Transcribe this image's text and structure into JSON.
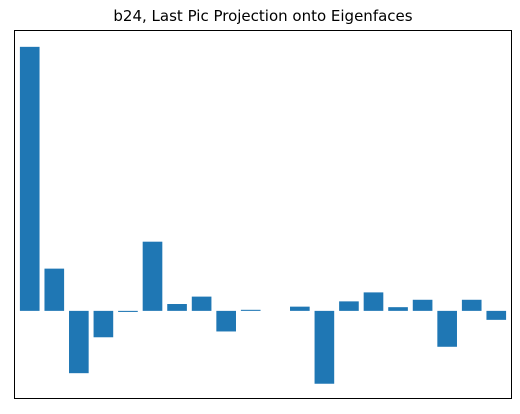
{
  "chart_data": {
    "type": "bar",
    "title": "b24, Last Pic Projection onto Eigenfaces",
    "xlabel": "",
    "ylabel": "",
    "x": [
      1,
      2,
      3,
      4,
      5,
      6,
      7,
      8,
      9,
      10,
      11,
      12,
      13,
      14,
      15,
      16,
      17,
      18,
      19,
      20
    ],
    "values": [
      100,
      16,
      -23.6,
      -10,
      -0.4,
      26.2,
      2.6,
      5.4,
      -7.8,
      0.4,
      0,
      1.6,
      -27.6,
      3.6,
      7,
      1.4,
      4.2,
      -13.6,
      4.2,
      -3.4
    ],
    "color": "#1f77b4",
    "ylim": [
      -33,
      106
    ],
    "xlim": [
      0.4,
      20.6
    ],
    "xticks_visible": false,
    "yticks_visible": false,
    "grid": false
  }
}
